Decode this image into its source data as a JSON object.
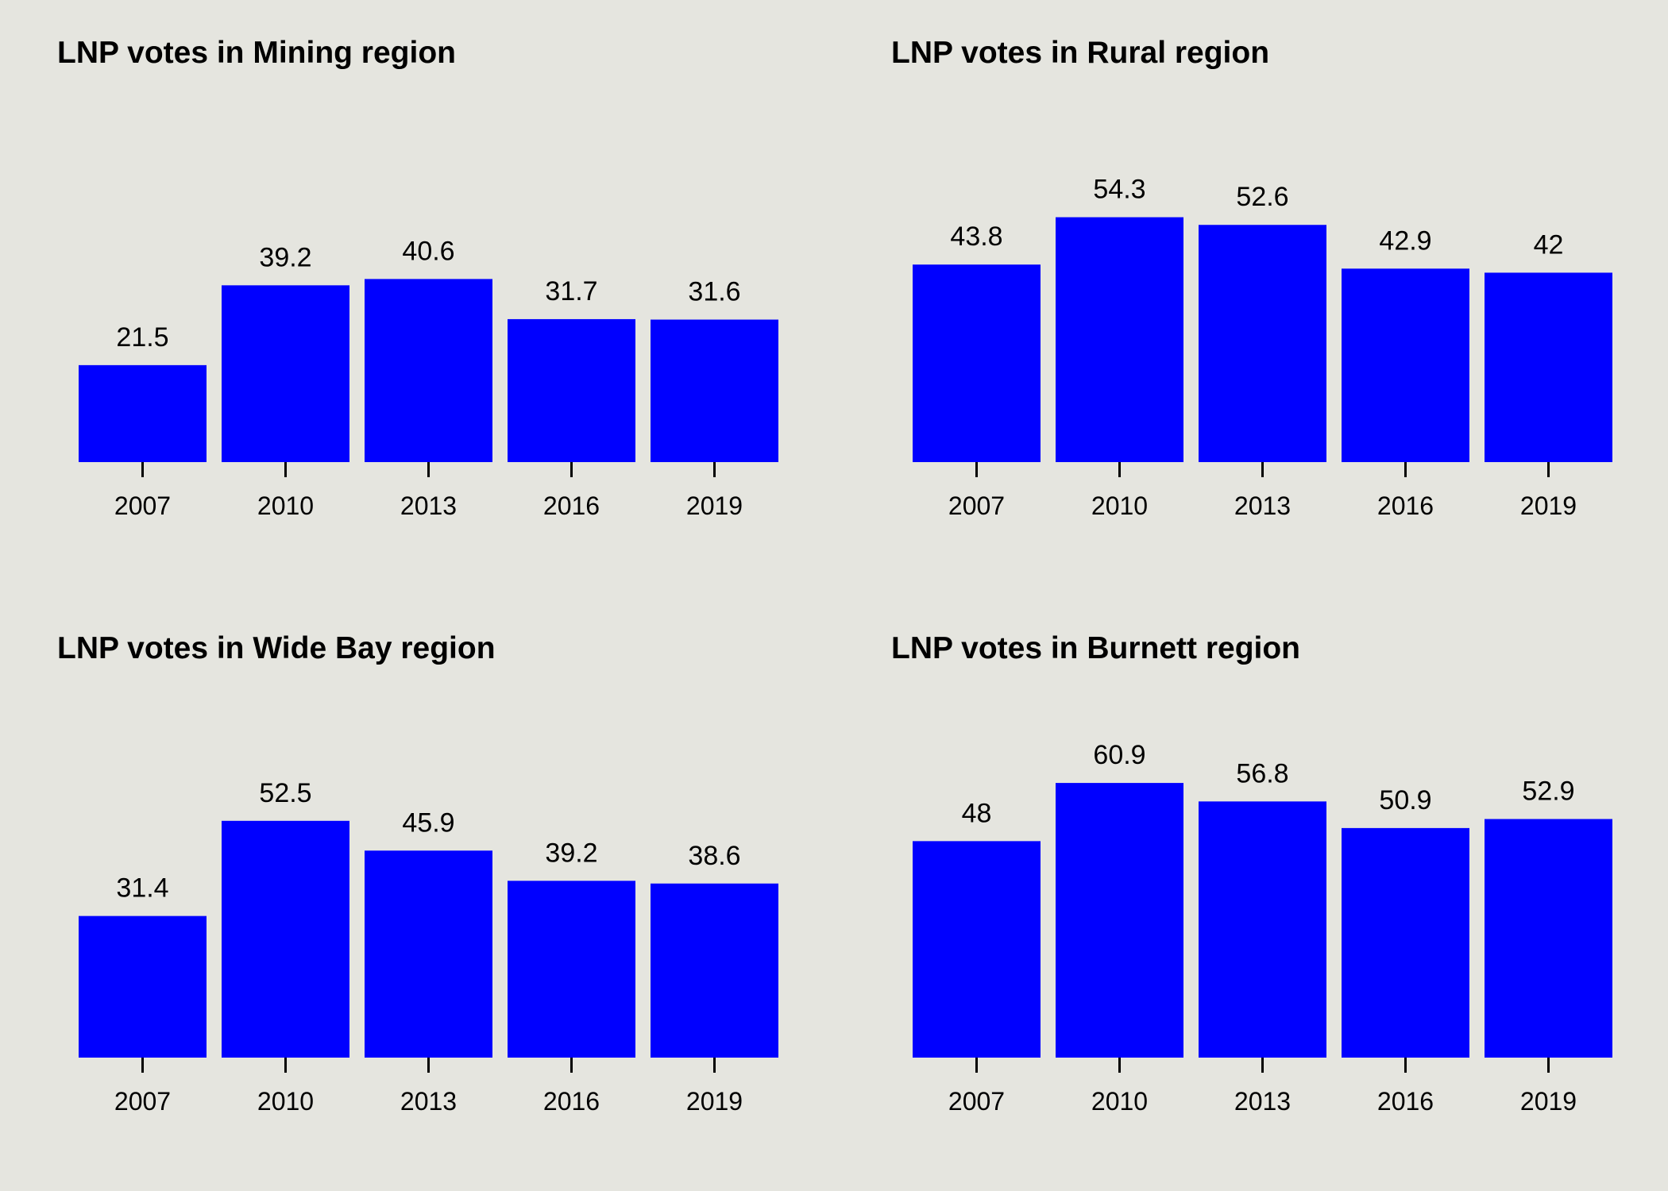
{
  "colors": {
    "background": "#e5e5df",
    "bar": "#0000ff",
    "text": "#000000"
  },
  "chart_data": [
    {
      "type": "bar",
      "title": "LNP votes in Mining region",
      "categories": [
        "2007",
        "2010",
        "2013",
        "2016",
        "2019"
      ],
      "values": [
        21.5,
        39.2,
        40.6,
        31.7,
        31.6
      ],
      "value_labels": [
        "21.5",
        "39.2",
        "40.6",
        "31.7",
        "31.6"
      ],
      "xlabel": "",
      "ylabel": "",
      "ylim": [
        0,
        66
      ],
      "grid": false,
      "legend": "none"
    },
    {
      "type": "bar",
      "title": "LNP votes in Rural region",
      "categories": [
        "2007",
        "2010",
        "2013",
        "2016",
        "2019"
      ],
      "values": [
        43.8,
        54.3,
        52.6,
        42.9,
        42
      ],
      "value_labels": [
        "43.8",
        "54.3",
        "52.6",
        "42.9",
        "42"
      ],
      "xlabel": "",
      "ylabel": "",
      "ylim": [
        0,
        66
      ],
      "grid": false,
      "legend": "none"
    },
    {
      "type": "bar",
      "title": "LNP votes in Wide Bay region",
      "categories": [
        "2007",
        "2010",
        "2013",
        "2016",
        "2019"
      ],
      "values": [
        31.4,
        52.5,
        45.9,
        39.2,
        38.6
      ],
      "value_labels": [
        "31.4",
        "52.5",
        "45.9",
        "39.2",
        "38.6"
      ],
      "xlabel": "",
      "ylabel": "",
      "ylim": [
        0,
        66
      ],
      "grid": false,
      "legend": "none"
    },
    {
      "type": "bar",
      "title": "LNP votes in Burnett region",
      "categories": [
        "2007",
        "2010",
        "2013",
        "2016",
        "2019"
      ],
      "values": [
        48,
        60.9,
        56.8,
        50.9,
        52.9
      ],
      "value_labels": [
        "48",
        "60.9",
        "56.8",
        "50.9",
        "52.9"
      ],
      "xlabel": "",
      "ylabel": "",
      "ylim": [
        0,
        66
      ],
      "grid": false,
      "legend": "none"
    }
  ]
}
